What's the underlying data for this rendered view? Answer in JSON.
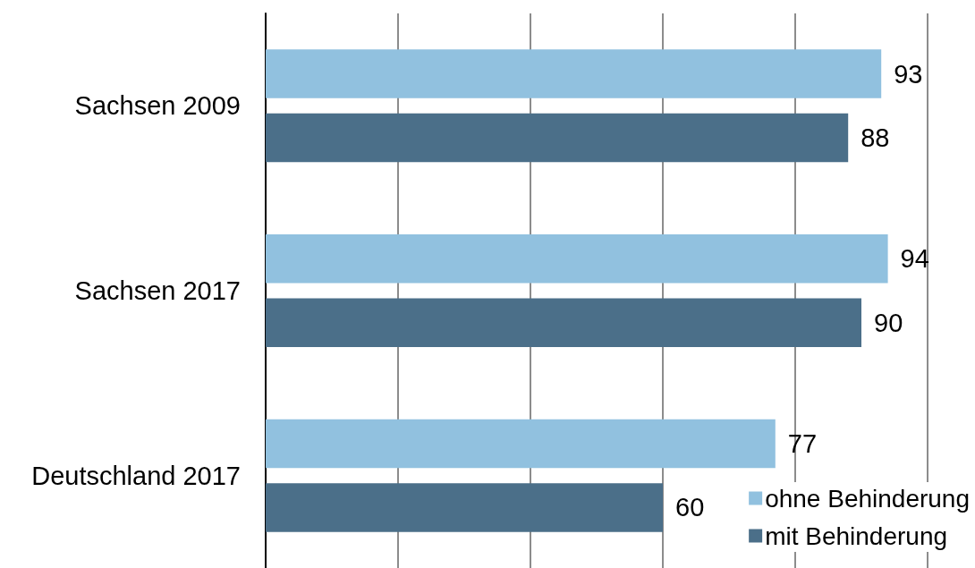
{
  "chart_data": {
    "type": "bar",
    "orientation": "horizontal",
    "categories": [
      "Sachsen 2009",
      "Sachsen 2017",
      "Deutschland 2017"
    ],
    "series": [
      {
        "name": "ohne Behinderung",
        "color": "#91c1df",
        "values": [
          93,
          94,
          77
        ]
      },
      {
        "name": "mit Behinderung",
        "color": "#4b6f89",
        "values": [
          88,
          90,
          60
        ]
      }
    ],
    "xlim": [
      0,
      100
    ],
    "xticks": [
      {
        "value": 0,
        "label": null
      },
      {
        "value": 20,
        "label": null
      },
      {
        "value": 40,
        "label": null
      },
      {
        "value": 60,
        "label": null
      },
      {
        "value": 80,
        "label": null
      },
      {
        "value": 100,
        "label": null
      }
    ],
    "grid": "x",
    "legend": "bottom right",
    "tick_labels": "y",
    "data_labels": true
  }
}
